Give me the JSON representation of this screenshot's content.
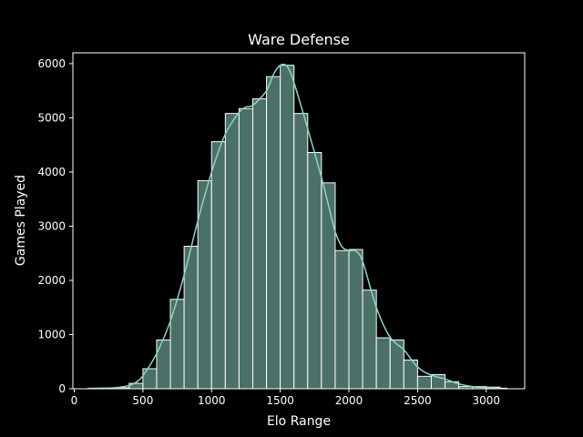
{
  "chart_data": {
    "type": "histogram",
    "title": "Ware Defense",
    "xlabel": "Elo Range",
    "ylabel": "Games Played",
    "xlim": [
      -10,
      3280
    ],
    "ylim": [
      0,
      6200
    ],
    "xticks": [
      0,
      500,
      1000,
      1500,
      2000,
      2500,
      3000
    ],
    "yticks": [
      0,
      1000,
      2000,
      3000,
      4000,
      5000,
      6000
    ],
    "grid": false,
    "legend": "none",
    "bin_width": 100,
    "bins": [
      {
        "x0": 100,
        "x1": 200,
        "value": 8
      },
      {
        "x0": 200,
        "x1": 300,
        "value": 10
      },
      {
        "x0": 300,
        "x1": 400,
        "value": 20
      },
      {
        "x0": 400,
        "x1": 500,
        "value": 100
      },
      {
        "x0": 500,
        "x1": 600,
        "value": 370
      },
      {
        "x0": 600,
        "x1": 700,
        "value": 900
      },
      {
        "x0": 700,
        "x1": 800,
        "value": 1650
      },
      {
        "x0": 800,
        "x1": 900,
        "value": 2630
      },
      {
        "x0": 900,
        "x1": 1000,
        "value": 3840
      },
      {
        "x0": 1000,
        "x1": 1100,
        "value": 4560
      },
      {
        "x0": 1100,
        "x1": 1200,
        "value": 5080
      },
      {
        "x0": 1200,
        "x1": 1300,
        "value": 5170
      },
      {
        "x0": 1300,
        "x1": 1400,
        "value": 5350
      },
      {
        "x0": 1400,
        "x1": 1500,
        "value": 5760
      },
      {
        "x0": 1500,
        "x1": 1600,
        "value": 5970
      },
      {
        "x0": 1600,
        "x1": 1700,
        "value": 5080
      },
      {
        "x0": 1700,
        "x1": 1800,
        "value": 4360
      },
      {
        "x0": 1800,
        "x1": 1900,
        "value": 3800
      },
      {
        "x0": 1900,
        "x1": 2000,
        "value": 2550
      },
      {
        "x0": 2000,
        "x1": 2100,
        "value": 2570
      },
      {
        "x0": 2100,
        "x1": 2200,
        "value": 1820
      },
      {
        "x0": 2200,
        "x1": 2300,
        "value": 940
      },
      {
        "x0": 2300,
        "x1": 2400,
        "value": 900
      },
      {
        "x0": 2400,
        "x1": 2500,
        "value": 530
      },
      {
        "x0": 2500,
        "x1": 2600,
        "value": 230
      },
      {
        "x0": 2600,
        "x1": 2700,
        "value": 260
      },
      {
        "x0": 2700,
        "x1": 2800,
        "value": 130
      },
      {
        "x0": 2800,
        "x1": 2900,
        "value": 40
      },
      {
        "x0": 2900,
        "x1": 3000,
        "value": 40
      },
      {
        "x0": 3000,
        "x1": 3100,
        "value": 30
      },
      {
        "x0": 3100,
        "x1": 3150,
        "value": 10
      }
    ],
    "kde": {
      "x": [
        100,
        200,
        300,
        400,
        450,
        500,
        600,
        700,
        800,
        900,
        1000,
        1100,
        1200,
        1250,
        1300,
        1400,
        1450,
        1500,
        1550,
        1600,
        1700,
        1800,
        1850,
        1900,
        1950,
        2000,
        2050,
        2100,
        2200,
        2300,
        2400,
        2500,
        2600,
        2700,
        2800,
        2900,
        3000,
        3100
      ],
      "y": [
        5,
        10,
        20,
        60,
        120,
        240,
        650,
        1250,
        2100,
        3100,
        4000,
        4700,
        5100,
        5200,
        5230,
        5500,
        5800,
        5970,
        5950,
        5650,
        4800,
        3900,
        3400,
        2900,
        2620,
        2550,
        2540,
        2350,
        1500,
        950,
        720,
        400,
        250,
        180,
        90,
        40,
        20,
        5
      ]
    },
    "colors": {
      "bar_fill": "#4a7068",
      "bar_edge": "#ffffff",
      "kde_line": "#8dd3c7",
      "background": "#000000",
      "axes": "#ffffff",
      "text": "#ffffff"
    }
  }
}
